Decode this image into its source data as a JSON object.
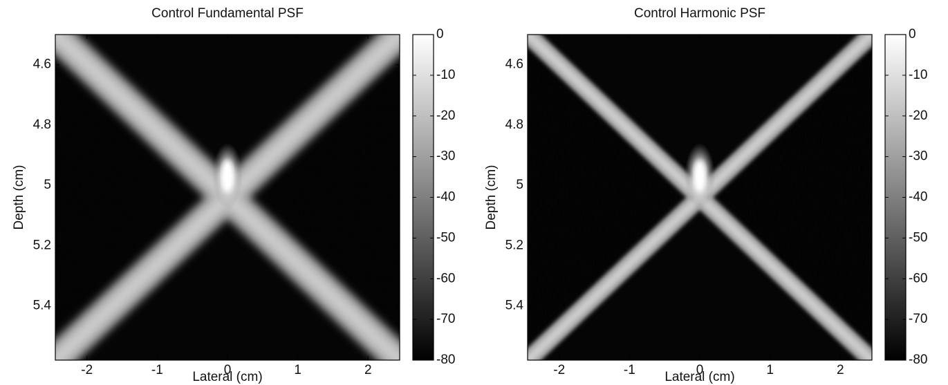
{
  "chart_data": [
    {
      "type": "heatmap",
      "title": "Control Fundamental PSF",
      "xlabel": "Lateral (cm)",
      "ylabel": "Depth (cm)",
      "xlim": [
        -2.45,
        2.45
      ],
      "ylim": [
        4.5,
        5.58
      ],
      "y_reversed": true,
      "xticks": [
        -2,
        -1,
        0,
        1,
        2
      ],
      "yticks": [
        4.6,
        4.8,
        5,
        5.2,
        5.4
      ],
      "colormap": "gray",
      "colorbar": {
        "lim": [
          -80,
          0
        ],
        "ticks": [
          0,
          -10,
          -20,
          -30,
          -40,
          -50,
          -60,
          -70,
          -80
        ]
      }
    },
    {
      "type": "heatmap",
      "title": "Control Harmonic PSF",
      "xlabel": "Lateral (cm)",
      "ylabel": "Depth (cm)",
      "xlim": [
        -2.45,
        2.45
      ],
      "ylim": [
        4.5,
        5.58
      ],
      "y_reversed": true,
      "xticks": [
        -2,
        -1,
        0,
        1,
        2
      ],
      "yticks": [
        4.6,
        4.8,
        5,
        5.2,
        5.4
      ],
      "colormap": "gray",
      "colorbar": {
        "lim": [
          -80,
          0
        ],
        "ticks": [
          0,
          -10,
          -20,
          -30,
          -40,
          -50,
          -60,
          -70,
          -80
        ]
      }
    }
  ]
}
